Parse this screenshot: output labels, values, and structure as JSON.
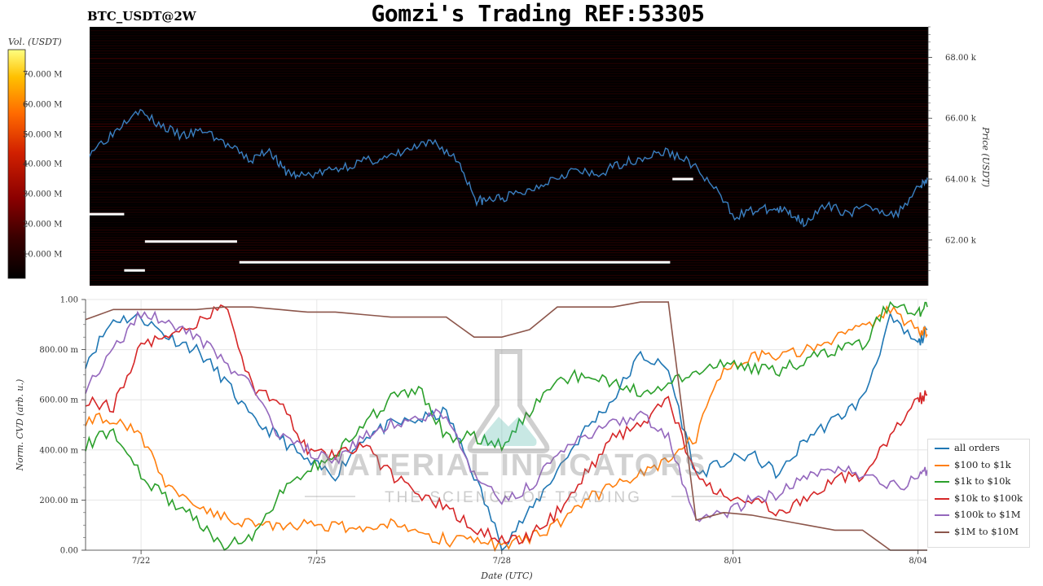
{
  "header": {
    "title": "Gomzi's Trading REF:53305",
    "symbol": "BTC_USDT@2W"
  },
  "colorbar": {
    "label": "Vol. (USDT)",
    "ticks": [
      "70.000 M",
      "60.000 M",
      "50.000 M",
      "40.000 M",
      "30.000 M",
      "20.000 M",
      "10.000 M"
    ]
  },
  "watermark": {
    "line1": "MATERIAL INDICATORS",
    "line2": "THE SCIENCE OF TRADING"
  },
  "chart_data": [
    {
      "type": "heatmap",
      "title": "",
      "ylabel": "Price (USDT)",
      "ylim": [
        60500,
        69000
      ],
      "y_ticks": [
        62000,
        64000,
        66000,
        68000
      ],
      "y_tick_labels": [
        "62.00 k",
        "64.00 k",
        "66.00 k",
        "68.00 k"
      ],
      "colorscale": [
        "#000000",
        "#3a0000",
        "#8b0000",
        "#d12000",
        "#ff6a00",
        "#ffc000",
        "#ffff80"
      ],
      "price_series": {
        "color": "#3a7fc1",
        "x": [
          0,
          0.5,
          1.0,
          1.5,
          2.0,
          2.5,
          3.0,
          3.5,
          3.9,
          4.2,
          4.5,
          5.0,
          5.5,
          6.0,
          6.5,
          7.0,
          7.5,
          8.0,
          8.4,
          8.6,
          9.0,
          9.5,
          10.0,
          10.5,
          11.0,
          11.5,
          12.0,
          12.5,
          13.0,
          13.5,
          14.0,
          14.5,
          14.9,
          15.2,
          15.5,
          16.0,
          16.5,
          17.0,
          17.5,
          18.0,
          18.2
        ],
        "values": [
          64900,
          65500,
          66300,
          65800,
          65400,
          65600,
          65100,
          64600,
          65000,
          64300,
          64100,
          64200,
          64400,
          64600,
          64700,
          65000,
          65200,
          64600,
          63300,
          63300,
          63400,
          63600,
          64000,
          64300,
          64100,
          64500,
          64700,
          64900,
          64600,
          63800,
          62800,
          63000,
          63000,
          62900,
          62600,
          63100,
          62900,
          63100,
          62800,
          63800,
          64000
        ]
      },
      "walls": [
        {
          "price": 62850,
          "x_start": 0,
          "x_end": 0.75
        },
        {
          "price": 61950,
          "x_start": 1.2,
          "x_end": 3.2
        },
        {
          "price": 61270,
          "x_start": 3.25,
          "x_end": 12.6
        },
        {
          "price": 61000,
          "x_start": 0.75,
          "x_end": 1.2
        },
        {
          "price": 64000,
          "x_start": 12.65,
          "x_end": 13.1
        }
      ]
    },
    {
      "type": "line",
      "title": "",
      "xlabel": "Date (UTC)",
      "ylabel": "Norm. CVD (arb. u.)",
      "ylim": [
        0,
        1
      ],
      "y_ticks": [
        0,
        0.2,
        0.4,
        0.6,
        0.8,
        1.0
      ],
      "y_tick_labels": [
        "0.00",
        "200.00 m",
        "400.00 m",
        "600.00 m",
        "800.00 m",
        "1.00"
      ],
      "x_ticks": [
        1.2,
        5.0,
        9.0,
        14.0,
        18.0
      ],
      "x_tick_labels": [
        "7/22",
        "7/25",
        "7/28",
        "8/01",
        "8/04"
      ],
      "xlim": [
        0,
        18.2
      ],
      "legend_position": "lower-right",
      "x": [
        0,
        0.6,
        1.2,
        1.8,
        2.4,
        3.0,
        3.6,
        4.2,
        4.8,
        5.4,
        6.0,
        6.6,
        7.2,
        7.8,
        8.4,
        9.0,
        9.6,
        10.2,
        10.8,
        11.4,
        12.0,
        12.6,
        13.2,
        13.8,
        14.4,
        15.0,
        15.6,
        16.2,
        16.8,
        17.4,
        18.0,
        18.2
      ],
      "series": [
        {
          "name": "all orders",
          "color": "#1f77b4",
          "values": [
            0.75,
            0.92,
            0.93,
            0.85,
            0.8,
            0.68,
            0.52,
            0.45,
            0.35,
            0.3,
            0.45,
            0.5,
            0.52,
            0.55,
            0.3,
            0.02,
            0.15,
            0.32,
            0.48,
            0.6,
            0.78,
            0.72,
            0.3,
            0.35,
            0.38,
            0.3,
            0.45,
            0.52,
            0.6,
            0.92,
            0.82,
            0.88
          ]
        },
        {
          "name": "$100 to $1k",
          "color": "#ff7f0e",
          "values": [
            0.52,
            0.53,
            0.45,
            0.25,
            0.18,
            0.13,
            0.11,
            0.1,
            0.1,
            0.1,
            0.09,
            0.1,
            0.07,
            0.04,
            0.03,
            0.02,
            0.05,
            0.1,
            0.2,
            0.25,
            0.3,
            0.35,
            0.45,
            0.74,
            0.77,
            0.78,
            0.8,
            0.85,
            0.88,
            0.96,
            0.88,
            0.86
          ]
        },
        {
          "name": "$1k to $10k",
          "color": "#2ca02c",
          "values": [
            0.42,
            0.48,
            0.3,
            0.2,
            0.12,
            0.02,
            0.05,
            0.22,
            0.32,
            0.38,
            0.5,
            0.6,
            0.65,
            0.45,
            0.45,
            0.42,
            0.55,
            0.68,
            0.7,
            0.66,
            0.63,
            0.66,
            0.72,
            0.74,
            0.73,
            0.72,
            0.76,
            0.8,
            0.82,
            0.99,
            0.95,
            0.97
          ]
        },
        {
          "name": "$10k to $100k",
          "color": "#d62728",
          "values": [
            0.6,
            0.57,
            0.82,
            0.85,
            0.9,
            0.98,
            0.65,
            0.6,
            0.4,
            0.38,
            0.42,
            0.3,
            0.22,
            0.18,
            0.08,
            0.05,
            0.05,
            0.15,
            0.3,
            0.45,
            0.5,
            0.6,
            0.3,
            0.22,
            0.2,
            0.15,
            0.2,
            0.28,
            0.3,
            0.45,
            0.6,
            0.62
          ]
        },
        {
          "name": "$100k to $1M",
          "color": "#9467bd",
          "values": [
            0.65,
            0.8,
            0.95,
            0.9,
            0.85,
            0.75,
            0.65,
            0.45,
            0.4,
            0.35,
            0.45,
            0.5,
            0.52,
            0.55,
            0.3,
            0.2,
            0.25,
            0.38,
            0.45,
            0.5,
            0.55,
            0.45,
            0.1,
            0.15,
            0.2,
            0.22,
            0.3,
            0.32,
            0.3,
            0.25,
            0.28,
            0.32
          ]
        },
        {
          "name": "$1M to $10M",
          "color": "#8c564b",
          "values": [
            0.92,
            0.96,
            0.96,
            0.96,
            0.96,
            0.97,
            0.97,
            0.96,
            0.95,
            0.95,
            0.94,
            0.93,
            0.93,
            0.93,
            0.85,
            0.85,
            0.88,
            0.97,
            0.97,
            0.97,
            0.99,
            0.99,
            0.12,
            0.15,
            0.14,
            0.12,
            0.1,
            0.08,
            0.08,
            0.0,
            0.0,
            0.0
          ]
        }
      ]
    }
  ]
}
